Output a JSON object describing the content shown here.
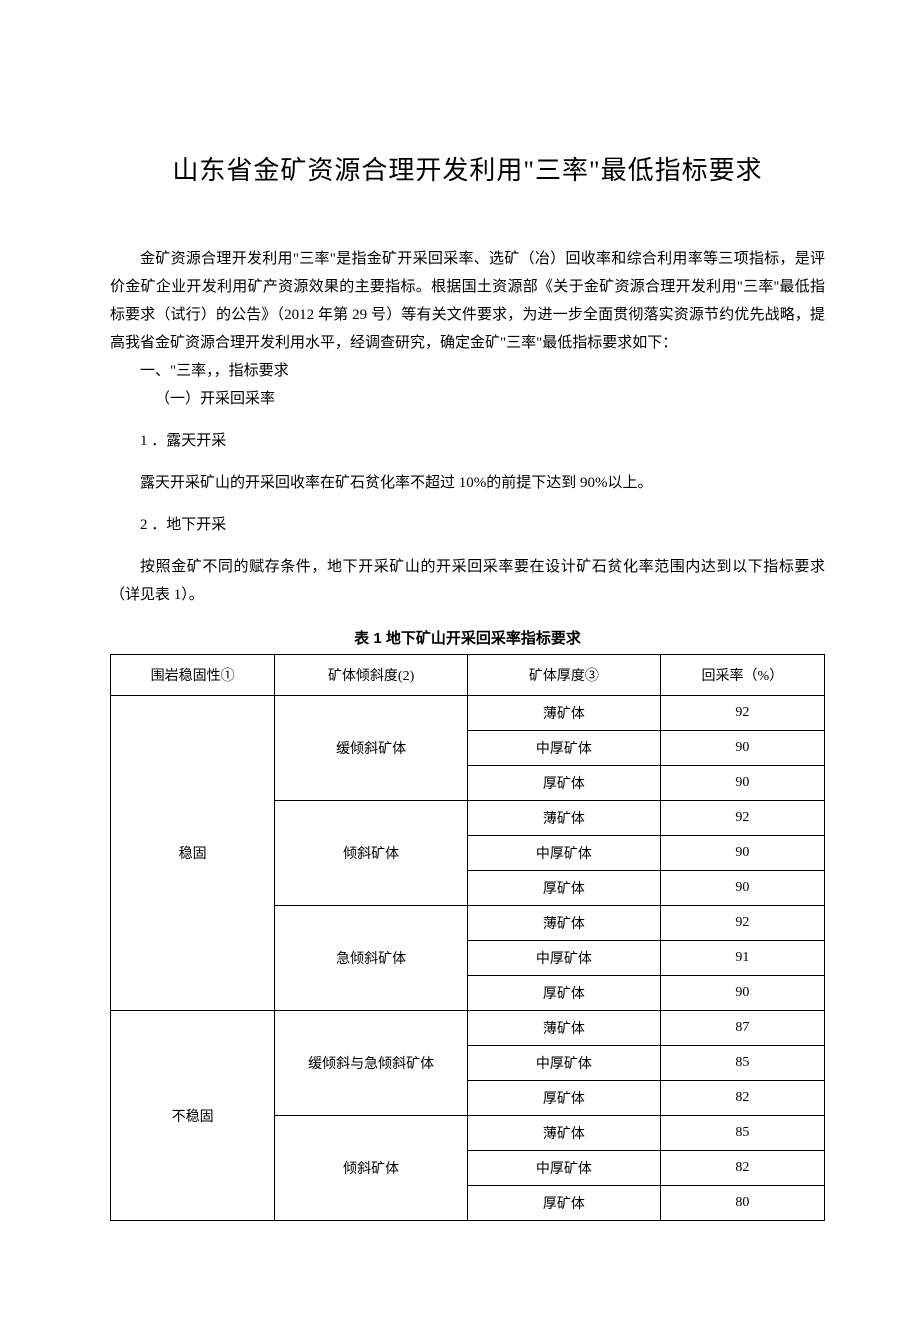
{
  "title": "山东省金矿资源合理开发利用\"三率\"最低指标要求",
  "paragraphs": {
    "intro": "金矿资源合理开发利用\"三率\"是指金矿开采回采率、选矿（冶）回收率和综合利用率等三项指标，是评价金矿企业开发利用矿产资源效果的主要指标。根据国土资源部《关于金矿资源合理开发利用\"三率''最低指标要求（试行）的公告》（2012 年第 29 号）等有关文件要求，为进一步全面贯彻落实资源节约优先战略，提高我省金矿资源合理开发利用水平，经调查研究，确定金矿\"三率\"最低指标要求如下：",
    "sec1": "一、\"三率，，指标要求",
    "sec1_1": "（一）开采回采率",
    "item1": "1 ．露天开采",
    "item1_body": "露天开采矿山的开采回收率在矿石贫化率不超过 10%的前提下达到 90%以上。",
    "item2": "2  ．地下开采",
    "item2_body": "按照金矿不同的赋存条件，地下开采矿山的开采回采率要在设计矿石贫化率范围内达到以下指标要求（详见表 1）。"
  },
  "table": {
    "caption": "表 1 地下矿山开采回采率指标要求",
    "headers": {
      "col1": "围岩稳固性①",
      "col2": "矿体倾斜度(2)",
      "col3": "矿体厚度③",
      "col4": "回采率（%）"
    },
    "groups": [
      {
        "stability": "稳固",
        "inclines": [
          {
            "name": "缓倾斜矿体",
            "rows": [
              {
                "thickness": "薄矿体",
                "rate": "92"
              },
              {
                "thickness": "中厚矿体",
                "rate": "90"
              },
              {
                "thickness": "厚矿体",
                "rate": "90"
              }
            ]
          },
          {
            "name": "倾斜矿体",
            "rows": [
              {
                "thickness": "薄矿体",
                "rate": "92"
              },
              {
                "thickness": "中厚矿体",
                "rate": "90"
              },
              {
                "thickness": "厚矿体",
                "rate": "90"
              }
            ]
          },
          {
            "name": "急倾斜矿体",
            "rows": [
              {
                "thickness": "薄矿体",
                "rate": "92"
              },
              {
                "thickness": "中厚矿体",
                "rate": "91"
              },
              {
                "thickness": "厚矿体",
                "rate": "90"
              }
            ]
          }
        ]
      },
      {
        "stability": "不稳固",
        "inclines": [
          {
            "name": "缓倾斜与急倾斜矿体",
            "rows": [
              {
                "thickness": "薄矿体",
                "rate": "87"
              },
              {
                "thickness": "中厚矿体",
                "rate": "85"
              },
              {
                "thickness": "厚矿体",
                "rate": "82"
              }
            ]
          },
          {
            "name": "倾斜矿体",
            "rows": [
              {
                "thickness": "薄矿体",
                "rate": "85"
              },
              {
                "thickness": "中厚矿体",
                "rate": "82"
              },
              {
                "thickness": "厚矿体",
                "rate": "80"
              }
            ]
          }
        ]
      }
    ]
  }
}
